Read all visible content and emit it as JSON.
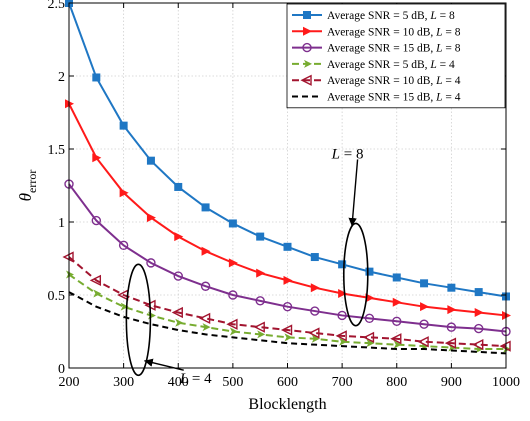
{
  "chart_data": {
    "type": "line",
    "xlabel": "Blocklength",
    "ylabel_main": "θ",
    "ylabel_sub": "error",
    "xlim": [
      200,
      1000
    ],
    "ylim": [
      0,
      2.5
    ],
    "xticks": [
      200,
      300,
      400,
      500,
      600,
      700,
      800,
      900,
      1000
    ],
    "yticks": [
      0,
      0.5,
      1,
      1.5,
      2,
      2.5
    ],
    "xtick_labels": [
      "200",
      "300",
      "400",
      "500",
      "600",
      "700",
      "800",
      "900",
      "1000"
    ],
    "ytick_labels": [
      "0",
      "0.5",
      "1",
      "1.5",
      "2",
      "2.5"
    ],
    "grid": true,
    "legend_position": "top-right",
    "x": [
      200,
      250,
      300,
      350,
      400,
      450,
      500,
      550,
      600,
      650,
      700,
      750,
      800,
      850,
      900,
      950,
      1000
    ],
    "series": [
      {
        "name_prefix": "Average SNR = 5 dB, ",
        "name_var": "L",
        "name_suffix": " = 8",
        "color": "#1f77c4",
        "dash": "",
        "marker": "square",
        "values": [
          2.5,
          1.99,
          1.66,
          1.42,
          1.24,
          1.1,
          0.99,
          0.9,
          0.83,
          0.76,
          0.71,
          0.66,
          0.62,
          0.58,
          0.55,
          0.52,
          0.49
        ]
      },
      {
        "name_prefix": "Average SNR = 10 dB, ",
        "name_var": "L",
        "name_suffix": " = 8",
        "color": "#ff1a1a",
        "dash": "",
        "marker": "triangle-right",
        "values": [
          1.81,
          1.44,
          1.2,
          1.03,
          0.9,
          0.8,
          0.72,
          0.65,
          0.6,
          0.55,
          0.51,
          0.48,
          0.45,
          0.42,
          0.4,
          0.38,
          0.36
        ]
      },
      {
        "name_prefix": "Average SNR = 15 dB, ",
        "name_var": "L",
        "name_suffix": " = 8",
        "color": "#7e2f8e",
        "dash": "",
        "marker": "circle",
        "values": [
          1.26,
          1.01,
          0.84,
          0.72,
          0.63,
          0.56,
          0.5,
          0.46,
          0.42,
          0.39,
          0.36,
          0.34,
          0.32,
          0.3,
          0.28,
          0.27,
          0.25
        ]
      },
      {
        "name_prefix": "Average SNR = 5 dB, ",
        "name_var": "L",
        "name_suffix": " = 4",
        "color": "#77ac30",
        "dash": "7,4",
        "marker": "arrow",
        "values": [
          0.64,
          0.51,
          0.42,
          0.36,
          0.31,
          0.28,
          0.25,
          0.23,
          0.21,
          0.2,
          0.18,
          0.17,
          0.16,
          0.15,
          0.14,
          0.13,
          0.13
        ]
      },
      {
        "name_prefix": "Average SNR = 10 dB, ",
        "name_var": "L",
        "name_suffix": " = 4",
        "color": "#a2142f",
        "dash": "7,4",
        "marker": "triangle-left",
        "values": [
          0.76,
          0.6,
          0.5,
          0.43,
          0.38,
          0.34,
          0.3,
          0.28,
          0.26,
          0.24,
          0.22,
          0.21,
          0.2,
          0.18,
          0.17,
          0.16,
          0.15
        ]
      },
      {
        "name_prefix": "Average SNR = 15 dB, ",
        "name_var": "L",
        "name_suffix": " = 4",
        "color": "#000000",
        "dash": "6,4",
        "marker": "none",
        "values": [
          0.52,
          0.42,
          0.35,
          0.3,
          0.26,
          0.23,
          0.21,
          0.19,
          0.17,
          0.16,
          0.15,
          0.14,
          0.13,
          0.13,
          0.12,
          0.11,
          0.1
        ]
      }
    ],
    "annotations": [
      {
        "var": "L",
        "text": " = 8",
        "ellipse_x": 725,
        "ellipse_y": 0.64,
        "ellipse_rx": 12,
        "ellipse_ry": 0.35,
        "label_x": 710,
        "label_y": 1.47,
        "arrow_to_x": 718,
        "arrow_to_y": 0.97
      },
      {
        "var": "L",
        "text": " = 4",
        "ellipse_x": 327,
        "ellipse_y": 0.33,
        "ellipse_rx": 12,
        "ellipse_ry": 0.38,
        "label_x": 432,
        "label_y": -0.07,
        "arrow_to_x": 338,
        "arrow_to_y": 0.05
      }
    ]
  }
}
